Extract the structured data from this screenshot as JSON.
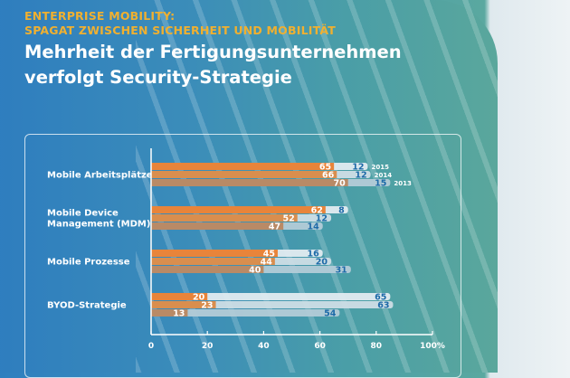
{
  "header": {
    "kicker_line1": "ENTERPRISE MOBILITY:",
    "kicker_line2": "SPAGAT ZWISCHEN SICHERHEIT UND MOBILITÄT",
    "title_line1": "Mehrheit der Fertigungsunternehmen",
    "title_line2": "verfolgt Security-Strategie"
  },
  "chart_data": {
    "type": "bar",
    "orientation": "horizontal",
    "stacked": true,
    "categories": [
      [
        "Mobile Arbeitsplätze"
      ],
      [
        "Mobile Device",
        "Management (MDM)"
      ],
      [
        "Mobile Prozesse"
      ],
      [
        "BYOD-Strategie"
      ]
    ],
    "series": [
      {
        "name": "2015",
        "orange_values": [
          65,
          62,
          45,
          20
        ],
        "light_values": [
          12,
          8,
          16,
          65
        ]
      },
      {
        "name": "2014",
        "orange_values": [
          66,
          52,
          44,
          23
        ],
        "light_values": [
          12,
          12,
          20,
          63
        ]
      },
      {
        "name": "2013",
        "orange_values": [
          70,
          47,
          40,
          13
        ],
        "light_values": [
          15,
          14,
          31,
          54
        ]
      }
    ],
    "xlim": [
      0,
      100
    ],
    "xticks": [
      "0",
      "20",
      "40",
      "60",
      "80",
      "100%"
    ],
    "grid": false,
    "colors": {
      "orange": [
        "#e8843a",
        "#d98e4e",
        "#b98a66"
      ],
      "light": [
        "#e2ebf0",
        "#cddde5",
        "#b3cbd7"
      ],
      "light_label": "#1d6aa8"
    }
  }
}
